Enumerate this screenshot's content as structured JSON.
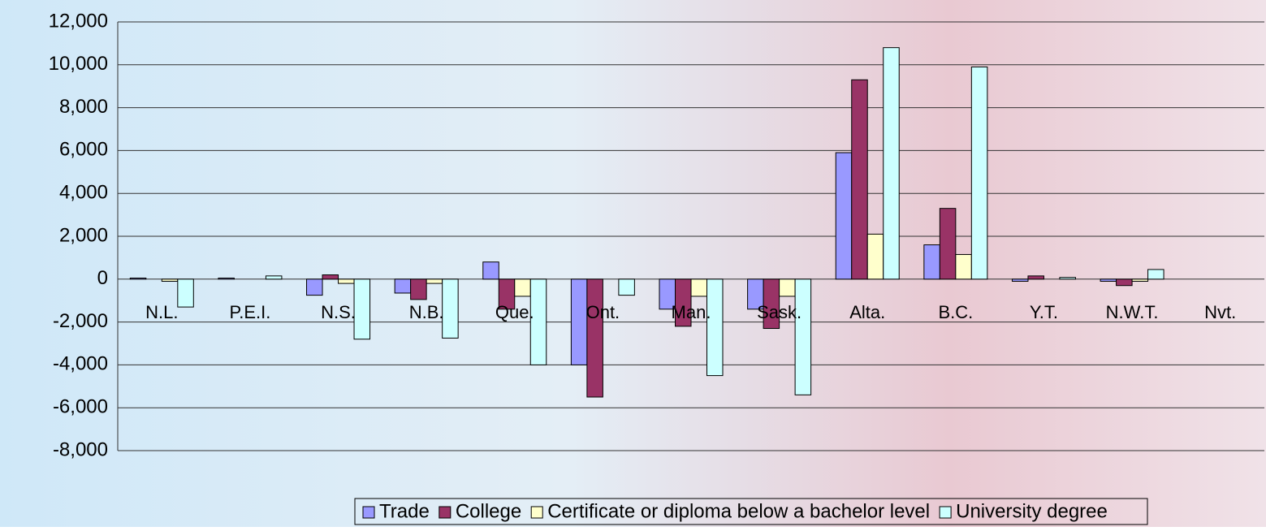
{
  "chart_data": {
    "type": "bar",
    "categories": [
      "N.L.",
      "P.E.I.",
      "N.S.",
      "N.B.",
      "Que.",
      "Ont.",
      "Man.",
      "Sask.",
      "Alta.",
      "B.C.",
      "Y.T.",
      "N.W.T.",
      "Nvt."
    ],
    "series": [
      {
        "name": "Trade",
        "color": "#9999ff",
        "values": [
          50,
          50,
          -750,
          -650,
          800,
          -4000,
          -1400,
          -1400,
          5900,
          1600,
          -100,
          -100,
          0
        ]
      },
      {
        "name": "College",
        "color": "#993366",
        "values": [
          0,
          0,
          200,
          -950,
          -1400,
          -5500,
          -2200,
          -2300,
          9300,
          3300,
          150,
          -300,
          0
        ]
      },
      {
        "name": "Certificate or diploma below a bachelor level",
        "color": "#ffffcc",
        "values": [
          -100,
          0,
          -200,
          -200,
          -800,
          0,
          -800,
          -800,
          2100,
          1150,
          0,
          -100,
          0
        ]
      },
      {
        "name": "University degree",
        "color": "#ccffff",
        "values": [
          -1300,
          150,
          -2800,
          -2750,
          -4000,
          -750,
          -4500,
          -5400,
          10800,
          9900,
          80,
          450,
          0
        ]
      }
    ],
    "ylim": [
      -8000,
      12000
    ],
    "yticks": [
      {
        "value": -8000,
        "label": "-8,000"
      },
      {
        "value": -6000,
        "label": "-6,000"
      },
      {
        "value": -4000,
        "label": "-4,000"
      },
      {
        "value": -2000,
        "label": "-2,000"
      },
      0,
      {
        "value": 2000,
        "label": "2,000"
      },
      {
        "value": 4000,
        "label": "4,000"
      },
      {
        "value": 6000,
        "label": "6,000"
      },
      {
        "value": 8000,
        "label": "8,000"
      },
      {
        "value": 10000,
        "label": "10,000"
      },
      {
        "value": 12000,
        "label": "12,000"
      }
    ],
    "grid": true,
    "legend": "bottom"
  }
}
